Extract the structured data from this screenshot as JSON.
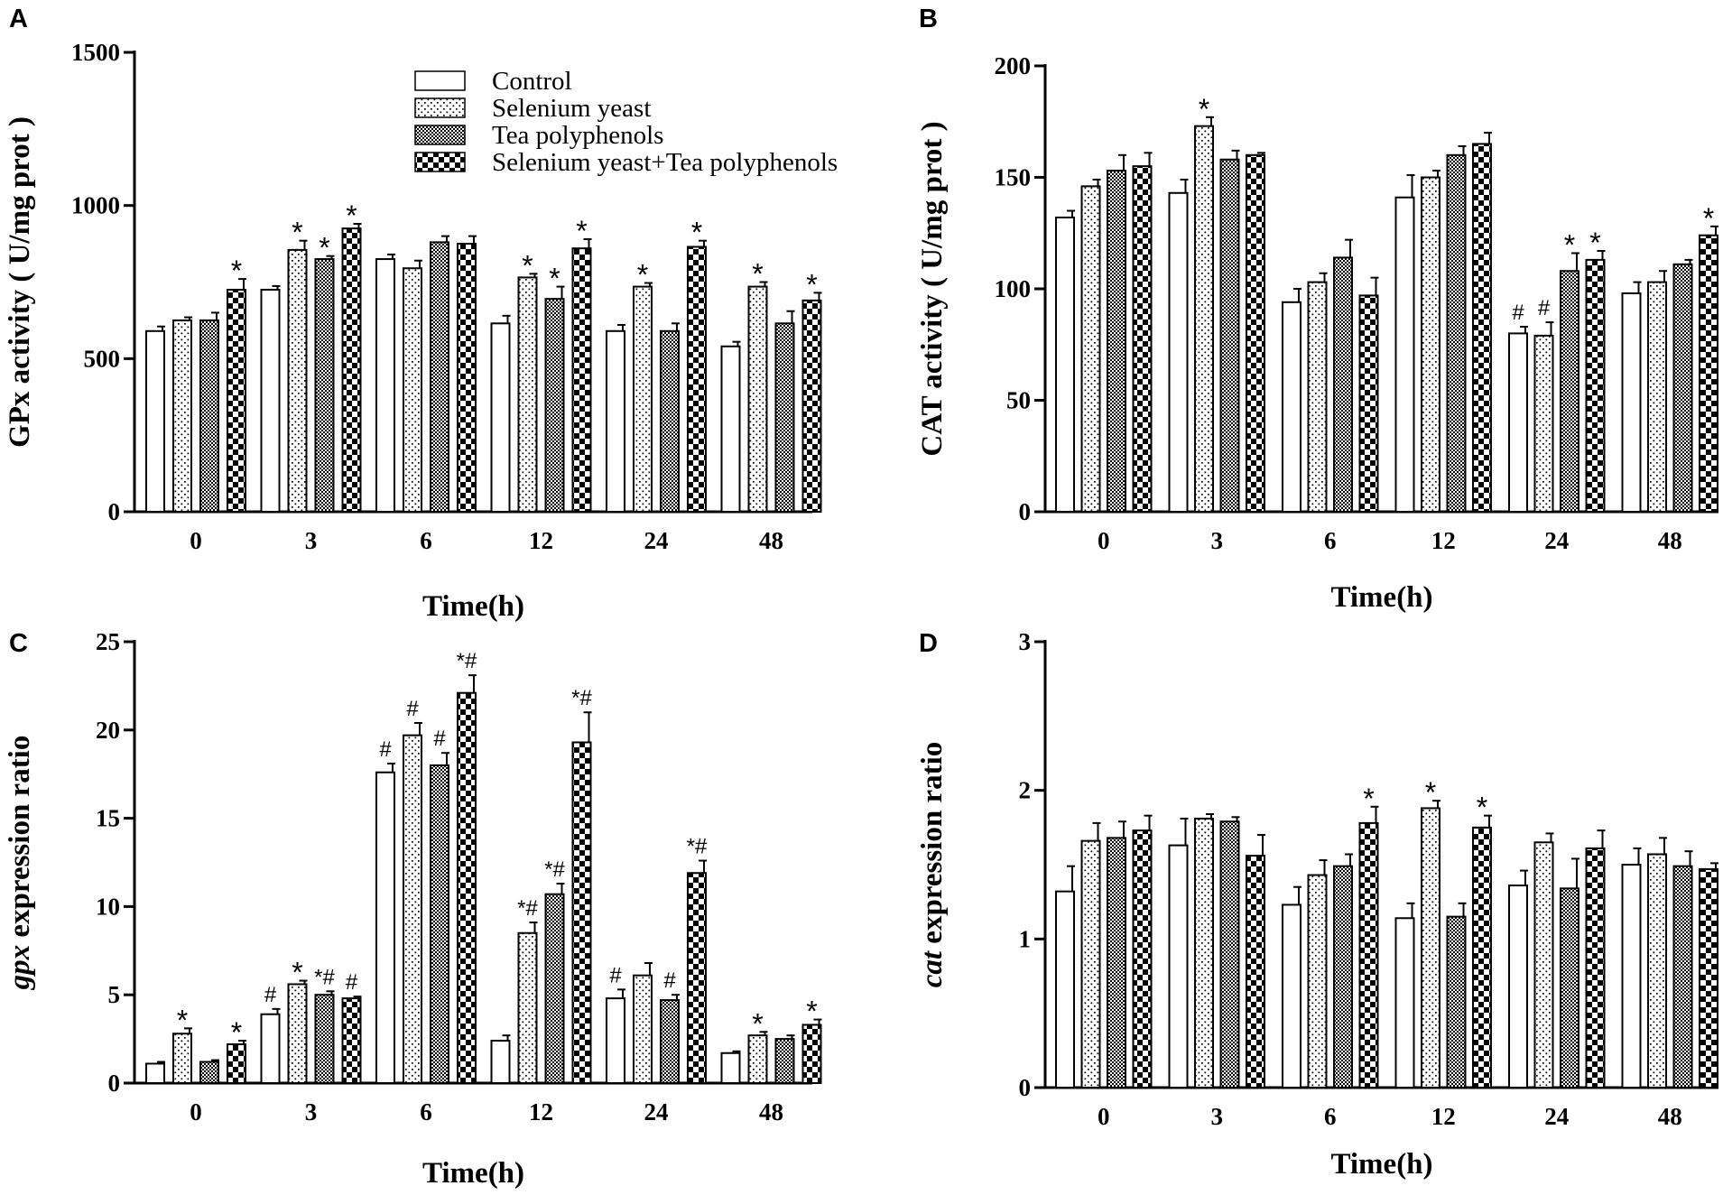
{
  "legend": [
    {
      "name": "Control",
      "pattern": "pat-control"
    },
    {
      "name": "Selenium yeast",
      "pattern": "pat-dots"
    },
    {
      "name": "Tea polyphenols",
      "pattern": "pat-checker"
    },
    {
      "name": "Selenium yeast+Tea polyphenols",
      "pattern": "pat-bigcheck"
    }
  ],
  "colors": {
    "bar_stroke": "#000000",
    "background": "#ffffff"
  },
  "chart_data": [
    {
      "id": "A",
      "letter": "A",
      "type": "bar",
      "ylabel": "GPx activity ( U/mg prot )",
      "ylabel_italic_prefix": "",
      "xlabel": "Time(h)",
      "categories": [
        "0",
        "3",
        "6",
        "12",
        "24",
        "48"
      ],
      "ylim": [
        0,
        1500
      ],
      "yticks": [
        0,
        500,
        1000,
        1500
      ],
      "series": [
        {
          "name": "Control",
          "values": [
            590,
            725,
            825,
            615,
            590,
            540
          ],
          "errors": [
            15,
            12,
            15,
            25,
            20,
            15
          ]
        },
        {
          "name": "Selenium yeast",
          "values": [
            625,
            855,
            795,
            765,
            735,
            735
          ],
          "errors": [
            10,
            30,
            25,
            12,
            12,
            15
          ]
        },
        {
          "name": "Tea polyphenols",
          "values": [
            625,
            825,
            880,
            695,
            590,
            615
          ],
          "errors": [
            25,
            10,
            20,
            40,
            25,
            40
          ]
        },
        {
          "name": "Selenium yeast+Tea polyphenols",
          "values": [
            725,
            925,
            875,
            860,
            865,
            690
          ],
          "errors": [
            35,
            15,
            25,
            30,
            20,
            25
          ]
        }
      ],
      "annotations": [
        [
          "",
          "",
          "",
          "*"
        ],
        [
          "",
          "*",
          "*",
          "*"
        ],
        [
          "",
          "",
          "",
          ""
        ],
        [
          "",
          "*",
          "*",
          "*"
        ],
        [
          "",
          "*",
          "",
          "*"
        ],
        [
          "",
          "*",
          "",
          "*"
        ]
      ]
    },
    {
      "id": "B",
      "letter": "B",
      "type": "bar",
      "ylabel": "CAT activity ( U/mg prot )",
      "ylabel_italic_prefix": "",
      "xlabel": "Time(h)",
      "categories": [
        "0",
        "3",
        "6",
        "12",
        "24",
        "48"
      ],
      "ylim": [
        0,
        200
      ],
      "yticks": [
        0,
        50,
        100,
        150,
        200
      ],
      "series": [
        {
          "name": "Control",
          "values": [
            132,
            143,
            94,
            141,
            80,
            98
          ],
          "errors": [
            3,
            6,
            6,
            10,
            3,
            5
          ]
        },
        {
          "name": "Selenium yeast",
          "values": [
            146,
            173,
            103,
            150,
            79,
            103
          ],
          "errors": [
            3,
            4,
            4,
            3,
            6,
            5
          ]
        },
        {
          "name": "Tea polyphenols",
          "values": [
            153,
            158,
            114,
            160,
            108,
            111
          ],
          "errors": [
            7,
            4,
            8,
            4,
            8,
            2
          ]
        },
        {
          "name": "Selenium yeast+Tea polyphenols",
          "values": [
            155,
            160,
            97,
            165,
            113,
            124
          ],
          "errors": [
            6,
            1,
            8,
            5,
            4,
            4
          ]
        }
      ],
      "annotations": [
        [
          "",
          "",
          "",
          ""
        ],
        [
          "",
          "*",
          "",
          ""
        ],
        [
          "",
          "",
          "",
          ""
        ],
        [
          "",
          "",
          "",
          ""
        ],
        [
          "#",
          "#",
          "*",
          "*"
        ],
        [
          "",
          "",
          "",
          "*"
        ]
      ]
    },
    {
      "id": "C",
      "letter": "C",
      "type": "bar",
      "ylabel": " expression ratio",
      "ylabel_italic_prefix": "gpx",
      "xlabel": "Time(h)",
      "categories": [
        "0",
        "3",
        "6",
        "12",
        "24",
        "48"
      ],
      "ylim": [
        0,
        25
      ],
      "yticks": [
        0,
        5,
        10,
        15,
        20,
        25
      ],
      "series": [
        {
          "name": "Control",
          "values": [
            1.1,
            3.9,
            17.6,
            2.4,
            4.8,
            1.7
          ],
          "errors": [
            0.1,
            0.3,
            0.5,
            0.3,
            0.5,
            0.1
          ]
        },
        {
          "name": "Selenium yeast",
          "values": [
            2.8,
            5.6,
            19.7,
            8.5,
            6.1,
            2.7
          ],
          "errors": [
            0.3,
            0.2,
            0.7,
            0.6,
            0.7,
            0.2
          ]
        },
        {
          "name": "Tea polyphenols",
          "values": [
            1.2,
            5.0,
            18.0,
            10.7,
            4.7,
            2.5
          ],
          "errors": [
            0.1,
            0.2,
            0.7,
            0.6,
            0.3,
            0.2
          ]
        },
        {
          "name": "Selenium yeast+Tea polyphenols",
          "values": [
            2.2,
            4.8,
            22.1,
            19.3,
            11.9,
            3.3
          ],
          "errors": [
            0.2,
            0.1,
            1.0,
            1.7,
            0.7,
            0.3
          ]
        }
      ],
      "annotations": [
        [
          "",
          "*",
          "",
          "*"
        ],
        [
          "#",
          "*",
          "*#",
          "#"
        ],
        [
          "#",
          "#",
          "#",
          "*#"
        ],
        [
          "",
          "*#",
          "*#",
          "*#"
        ],
        [
          "#",
          "",
          "#",
          "*#"
        ],
        [
          "",
          "*",
          "",
          "*"
        ]
      ]
    },
    {
      "id": "D",
      "letter": "D",
      "type": "bar",
      "ylabel": " expression ratio",
      "ylabel_italic_prefix": "cat",
      "xlabel": "Time(h)",
      "categories": [
        "0",
        "3",
        "6",
        "12",
        "24",
        "48"
      ],
      "ylim": [
        0,
        3
      ],
      "yticks": [
        0,
        1,
        2,
        3
      ],
      "series": [
        {
          "name": "Control",
          "values": [
            1.32,
            1.63,
            1.23,
            1.14,
            1.36,
            1.5
          ],
          "errors": [
            0.17,
            0.18,
            0.12,
            0.1,
            0.1,
            0.11
          ]
        },
        {
          "name": "Selenium yeast",
          "values": [
            1.66,
            1.81,
            1.43,
            1.88,
            1.65,
            1.57
          ],
          "errors": [
            0.12,
            0.03,
            0.1,
            0.05,
            0.06,
            0.11
          ]
        },
        {
          "name": "Tea polyphenols",
          "values": [
            1.68,
            1.79,
            1.49,
            1.15,
            1.34,
            1.49
          ],
          "errors": [
            0.11,
            0.03,
            0.08,
            0.09,
            0.2,
            0.1
          ]
        },
        {
          "name": "Selenium yeast+Tea polyphenols",
          "values": [
            1.73,
            1.56,
            1.78,
            1.75,
            1.61,
            1.47
          ],
          "errors": [
            0.1,
            0.14,
            0.11,
            0.08,
            0.12,
            0.04
          ]
        }
      ],
      "annotations": [
        [
          "",
          "",
          "",
          ""
        ],
        [
          "",
          "",
          "",
          ""
        ],
        [
          "",
          "",
          "",
          "*"
        ],
        [
          "",
          "*",
          "",
          "*"
        ],
        [
          "",
          "",
          "",
          ""
        ],
        [
          "",
          "",
          "",
          ""
        ]
      ]
    }
  ]
}
